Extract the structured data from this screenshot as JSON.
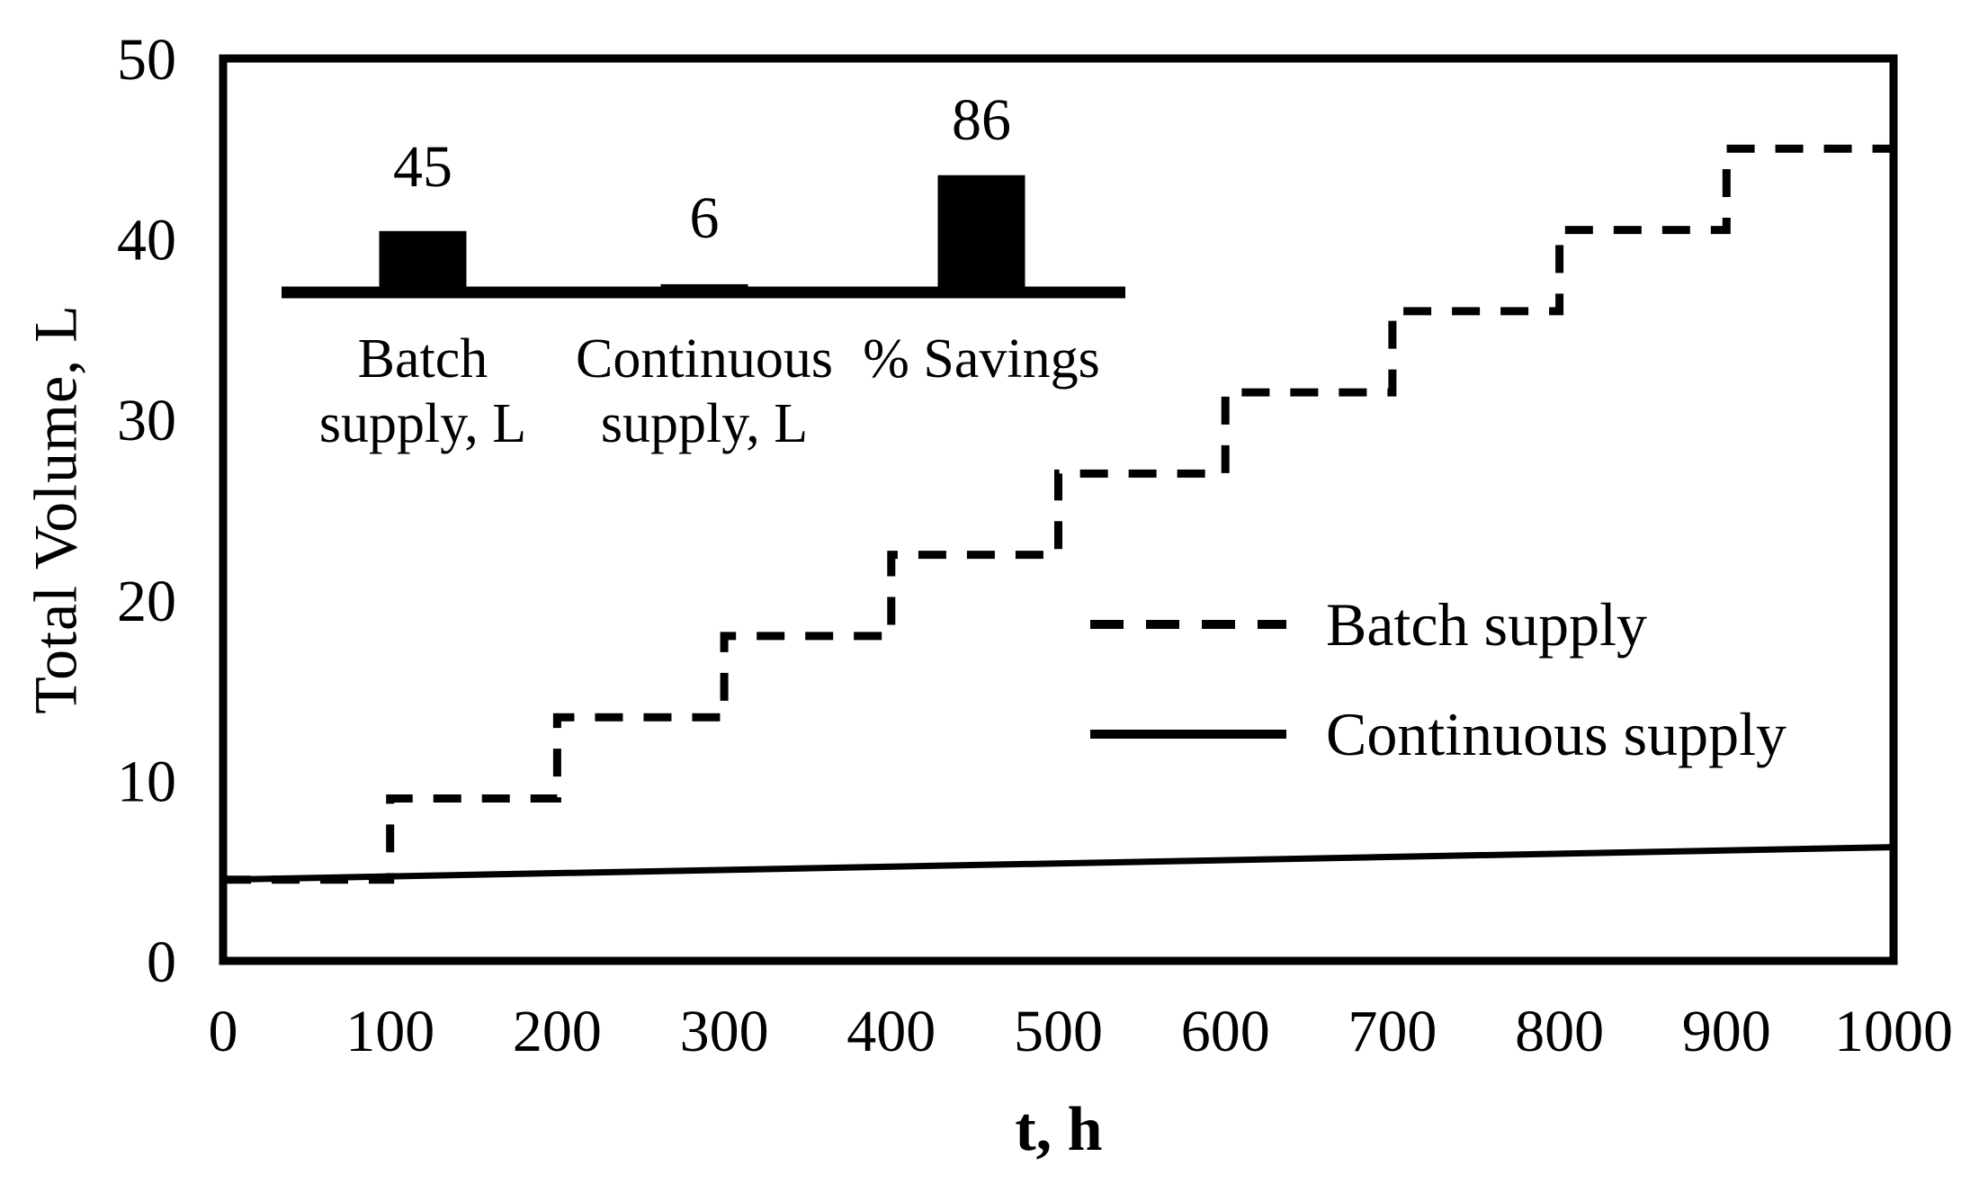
{
  "figure": {
    "y_axis_title": "Total Volume, L",
    "x_axis_title": "t, h",
    "background_color": "#ffffff",
    "ink_color": "#000000"
  },
  "legend": {
    "position": "center-right",
    "items": [
      {
        "label": "Batch supply",
        "line_style": "dashed"
      },
      {
        "label": "Continuous supply",
        "line_style": "solid"
      }
    ]
  },
  "inset_labels": [
    {
      "line1": "Batch",
      "line2": "supply, L"
    },
    {
      "line1": "Continuous",
      "line2": "supply, L"
    },
    {
      "line1": "% Savings",
      "line2": ""
    }
  ],
  "chart_data": [
    {
      "type": "line",
      "title": "",
      "xlabel": "t, h",
      "ylabel": "Total Volume, L",
      "xlim": [
        0,
        1000
      ],
      "ylim": [
        0,
        50
      ],
      "x_ticks": [
        0,
        100,
        200,
        300,
        400,
        500,
        600,
        700,
        800,
        900,
        1000
      ],
      "y_ticks": [
        0,
        10,
        20,
        30,
        40,
        50
      ],
      "grid": false,
      "legend_position": "center-right",
      "series": [
        {
          "name": "Batch supply",
          "style": "dashed",
          "shape": "step-after",
          "step_t": [
            0,
            100,
            200,
            300,
            400,
            500,
            600,
            700,
            800,
            900
          ],
          "step_level": [
            4.5,
            9,
            13.5,
            18,
            22.5,
            27,
            31.5,
            36,
            40.5,
            45
          ],
          "t_end": 1000
        },
        {
          "name": "Continuous supply",
          "style": "solid",
          "shape": "linear",
          "t": [
            0,
            1000
          ],
          "v": [
            4.5,
            6.3
          ]
        }
      ]
    },
    {
      "type": "bar",
      "categories": [
        "Batch supply, L",
        "Continuous supply, L",
        "% Savings"
      ],
      "values": [
        45,
        6,
        86
      ],
      "bar_color": "#000000",
      "axis_line": true
    }
  ]
}
